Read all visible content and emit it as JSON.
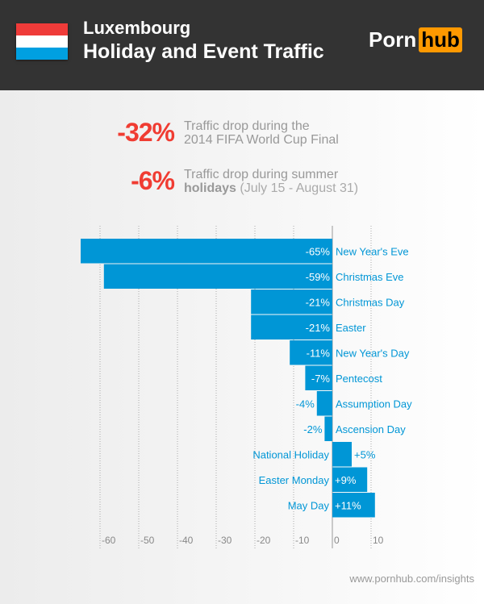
{
  "header": {
    "country": "Luxembourg",
    "title": "Holiday and Event Traffic",
    "logo": {
      "left": "Porn",
      "right": "hub"
    },
    "flag_colors": [
      "#ef3b39",
      "#ffffff",
      "#00a0e1"
    ]
  },
  "stats": [
    {
      "value": "-32%",
      "line1": "Traffic drop during the",
      "line2": "2014 FIFA World Cup Final"
    },
    {
      "value": "-6%",
      "line1": "Traffic drop during summer",
      "line2_bold": "holidays",
      "line2_light": "(July 15 - August 31)"
    }
  ],
  "chart_data": {
    "type": "bar",
    "orientation": "horizontal",
    "categories": [
      "New Year's Eve",
      "Christmas Eve",
      "Christmas Day",
      "Easter",
      "New Year's Day",
      "Pentecost",
      "Assumption Day",
      "Ascension Day",
      "National Holiday",
      "Easter Monday",
      "May Day"
    ],
    "values": [
      -65,
      -59,
      -21,
      -21,
      -11,
      -7,
      -4,
      -2,
      5,
      9,
      11
    ],
    "value_labels": [
      "-65%",
      "-59%",
      "-21%",
      "-21%",
      "-11%",
      "-7%",
      "-4%",
      "-2%",
      "+5%",
      "+9%",
      "+11%"
    ],
    "xticks": [
      "-60",
      "-50",
      "-40",
      "-30",
      "-20",
      "-10",
      "0",
      "10"
    ],
    "xtick_values": [
      -60,
      -50,
      -40,
      -30,
      -20,
      -10,
      0,
      10
    ],
    "xlim": [
      -67,
      12
    ],
    "grid": true,
    "bar_color": "#0096d6"
  },
  "footer": "www.pornhub.com/insights"
}
